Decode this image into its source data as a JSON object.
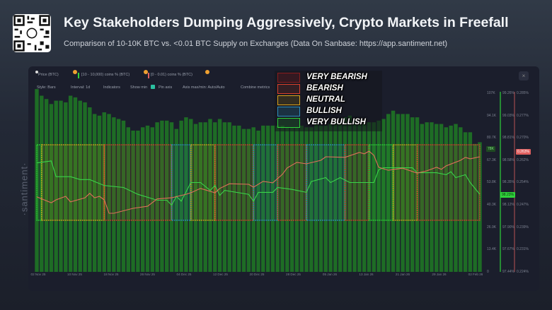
{
  "header": {
    "title": "Key Stakeholders Dumping Aggressively, Crypto Markets in Freefall",
    "subtitle": "Comparison of 10-10K BTC vs. <0.01 BTC Supply on Exchanges (Data On Sanbase: https://app.santiment.net)",
    "qr_icon": "qr-code-icon"
  },
  "toolbar": {
    "metrics": [
      "Price (BTC)",
      "[10 - 10,000) coins % (BTC)",
      "[0 - 0.01) coins % (BTC)"
    ],
    "controls": [
      "Style: Bars",
      "Interval: 1d",
      "Indicators",
      "Show min",
      "Pin axis",
      "Axis max/min: Auto/Auto",
      "Combine metrics"
    ],
    "close_label": "×"
  },
  "watermark": "·santiment·",
  "legend": [
    {
      "label": "VERY BEARISH",
      "color": "#8a1c1c"
    },
    {
      "label": "BEARISH",
      "color": "#d9402c"
    },
    {
      "label": "NEUTRAL",
      "color": "#d9a21b"
    },
    {
      "label": "BULLISH",
      "color": "#2f8fbf"
    },
    {
      "label": "VERY BULLISH",
      "color": "#2fd23a"
    }
  ],
  "chart_data": {
    "type": "bar",
    "x_tick_labels": [
      "02 Nov 25",
      "10 Nov 25",
      "18 Nov 25",
      "26 Nov 25",
      "04 Dec 25",
      "12 Dec 25",
      "20 Dec 25",
      "28 Dec 25",
      "05 Jan 26",
      "13 Jan 26",
      "21 Jan 26",
      "29 Jan 26",
      "02 Feb 26"
    ],
    "axes": {
      "price": {
        "ticks": [
          "107K",
          "94.1K",
          "80.7K",
          "67.3K",
          "53.8K",
          "40.3K",
          "26.9K",
          "13.4K",
          "0"
        ],
        "range_k": [
          0,
          107.5
        ],
        "color": "#8a8f9c",
        "current_tag": "78K"
      },
      "whales": {
        "ticks": [
          "99.26%",
          "99.03%",
          "98.81%",
          "98.58%",
          "98.35%",
          "98.12%",
          "97.90%",
          "97.67%",
          "97.44%"
        ],
        "range": [
          97.44,
          99.26
        ],
        "color": "#2fd23a",
        "current_tag": "98.23%"
      },
      "shrimps": {
        "ticks": [
          "0.285%",
          "0.277%",
          "0.270%",
          "0.262%",
          "0.254%",
          "0.247%",
          "0.239%",
          "0.231%",
          "0.224%"
        ],
        "range": [
          0.224,
          0.285
        ],
        "color": "#e06060",
        "current_tag": "0.263%"
      }
    },
    "price_series": {
      "name": "Price (BTC)",
      "unit": "K USD",
      "color": "#1f7a24",
      "start": "2025-11-02",
      "values": [
        110,
        106,
        104,
        101,
        103,
        103,
        102,
        106,
        105,
        103,
        102,
        99,
        95,
        94,
        96,
        95,
        93,
        92,
        91,
        87,
        85,
        85,
        87,
        88,
        87,
        90,
        91,
        91,
        90,
        86,
        91,
        93,
        92,
        89,
        90,
        90,
        92,
        90,
        92,
        90,
        90,
        88,
        88,
        86,
        86,
        87,
        85,
        88,
        88,
        88,
        88,
        88,
        87,
        87,
        87,
        88,
        87,
        87,
        89,
        88,
        88,
        89,
        90,
        91,
        93,
        94,
        92,
        91,
        91,
        90,
        90,
        91,
        92,
        95,
        97,
        95,
        95,
        95,
        93,
        93,
        89,
        90,
        90,
        89,
        89,
        87,
        88,
        89,
        87,
        84,
        84,
        77,
        78
      ]
    },
    "series": [
      {
        "name": "[10 - 10,000) coins % (BTC)",
        "axis": "whales",
        "color": "#3ad24a",
        "points": [
          [
            "2025-11-02",
            98.55
          ],
          [
            "2025-11-05",
            98.57
          ],
          [
            "2025-11-06",
            98.41
          ],
          [
            "2025-11-09",
            98.41
          ],
          [
            "2025-11-11",
            98.38
          ],
          [
            "2025-11-13",
            98.38
          ],
          [
            "2025-11-16",
            98.32
          ],
          [
            "2025-11-20",
            98.3
          ],
          [
            "2025-11-23",
            98.23
          ],
          [
            "2025-11-27",
            98.17
          ],
          [
            "2025-11-29",
            98.17
          ],
          [
            "2025-11-30",
            98.12
          ],
          [
            "2025-12-01",
            98.21
          ],
          [
            "2025-12-02",
            98.16
          ],
          [
            "2025-12-04",
            98.35
          ],
          [
            "2025-12-06",
            98.35
          ],
          [
            "2025-12-08",
            98.27
          ],
          [
            "2025-12-09",
            98.32
          ],
          [
            "2025-12-10",
            98.22
          ],
          [
            "2025-12-11",
            98.27
          ],
          [
            "2025-12-16",
            98.23
          ],
          [
            "2025-12-17",
            98.16
          ],
          [
            "2025-12-18",
            98.25
          ],
          [
            "2025-12-21",
            98.25
          ],
          [
            "2025-12-22",
            98.3
          ],
          [
            "2025-12-25",
            98.28
          ],
          [
            "2025-12-28",
            98.25
          ],
          [
            "2025-12-29",
            98.36
          ],
          [
            "2026-01-01",
            98.4
          ],
          [
            "2026-01-02",
            98.35
          ],
          [
            "2026-01-04",
            98.4
          ],
          [
            "2026-01-06",
            98.35
          ],
          [
            "2026-01-11",
            98.35
          ],
          [
            "2026-01-12",
            98.48
          ],
          [
            "2026-01-13",
            98.5
          ],
          [
            "2026-01-19",
            98.5
          ],
          [
            "2026-01-20",
            98.45
          ],
          [
            "2026-01-24",
            98.45
          ],
          [
            "2026-01-26",
            98.43
          ],
          [
            "2026-01-27",
            98.46
          ],
          [
            "2026-01-28",
            98.4
          ],
          [
            "2026-01-30",
            98.43
          ],
          [
            "2026-01-31",
            98.35
          ],
          [
            "2026-02-02",
            98.23
          ]
        ]
      },
      {
        "name": "[0 - 0.01) coins % (BTC)",
        "axis": "shrimps",
        "color": "#e0705a",
        "points": [
          [
            "2025-11-02",
            0.2496
          ],
          [
            "2025-11-05",
            0.2476
          ],
          [
            "2025-11-06",
            0.2486
          ],
          [
            "2025-11-08",
            0.2498
          ],
          [
            "2025-11-09",
            0.2479
          ],
          [
            "2025-11-12",
            0.2493
          ],
          [
            "2025-11-13",
            0.2508
          ],
          [
            "2025-11-14",
            0.2493
          ],
          [
            "2025-11-15",
            0.2498
          ],
          [
            "2025-11-16",
            0.2486
          ],
          [
            "2025-11-17",
            0.244
          ],
          [
            "2025-11-18",
            0.244
          ],
          [
            "2025-11-22",
            0.2457
          ],
          [
            "2025-11-25",
            0.2464
          ],
          [
            "2025-11-27",
            0.2489
          ],
          [
            "2025-11-30",
            0.2493
          ],
          [
            "2025-12-03",
            0.2505
          ],
          [
            "2025-12-04",
            0.251
          ],
          [
            "2025-12-06",
            0.2525
          ],
          [
            "2025-12-09",
            0.251
          ],
          [
            "2025-12-10",
            0.2525
          ],
          [
            "2025-12-12",
            0.2541
          ],
          [
            "2025-12-16",
            0.2539
          ],
          [
            "2025-12-17",
            0.2529
          ],
          [
            "2025-12-19",
            0.2549
          ],
          [
            "2025-12-21",
            0.2544
          ],
          [
            "2025-12-23",
            0.2573
          ],
          [
            "2025-12-24",
            0.2595
          ],
          [
            "2025-12-26",
            0.2614
          ],
          [
            "2025-12-28",
            0.2609
          ],
          [
            "2025-12-31",
            0.2621
          ],
          [
            "2026-01-01",
            0.2633
          ],
          [
            "2026-01-05",
            0.2631
          ],
          [
            "2026-01-08",
            0.2648
          ],
          [
            "2026-01-09",
            0.2643
          ],
          [
            "2026-01-10",
            0.2652
          ],
          [
            "2026-01-11",
            0.2638
          ],
          [
            "2026-01-12",
            0.2597
          ],
          [
            "2026-01-14",
            0.2587
          ],
          [
            "2026-01-17",
            0.2594
          ],
          [
            "2026-01-20",
            0.2577
          ],
          [
            "2026-01-22",
            0.2585
          ],
          [
            "2026-01-24",
            0.2597
          ],
          [
            "2026-01-25",
            0.259
          ],
          [
            "2026-01-26",
            0.2602
          ],
          [
            "2026-01-29",
            0.2621
          ],
          [
            "2026-01-30",
            0.2631
          ],
          [
            "2026-01-31",
            0.2626
          ],
          [
            "2026-02-02",
            0.2633
          ]
        ]
      }
    ],
    "sentiment_zones": [
      {
        "from": "2025-11-02",
        "to": "2025-11-03",
        "sentiment": "VERY BULLISH"
      },
      {
        "from": "2025-11-03",
        "to": "2025-11-16",
        "sentiment": "NEUTRAL"
      },
      {
        "from": "2025-11-16",
        "to": "2025-11-30",
        "sentiment": "BEARISH"
      },
      {
        "from": "2025-11-30",
        "to": "2025-12-04",
        "sentiment": "BULLISH"
      },
      {
        "from": "2025-12-04",
        "to": "2025-12-09",
        "sentiment": "NEUTRAL"
      },
      {
        "from": "2025-12-09",
        "to": "2025-12-17",
        "sentiment": "BEARISH"
      },
      {
        "from": "2025-12-17",
        "to": "2025-12-22",
        "sentiment": "BULLISH"
      },
      {
        "from": "2025-12-22",
        "to": "2025-12-28",
        "sentiment": "BEARISH"
      },
      {
        "from": "2025-12-28",
        "to": "2026-01-05",
        "sentiment": "BULLISH"
      },
      {
        "from": "2026-01-05",
        "to": "2026-01-10",
        "sentiment": "BEARISH"
      },
      {
        "from": "2026-01-10",
        "to": "2026-01-15",
        "sentiment": "VERY BULLISH"
      },
      {
        "from": "2026-01-15",
        "to": "2026-01-20",
        "sentiment": "NEUTRAL"
      },
      {
        "from": "2026-01-20",
        "to": "2026-02-02",
        "sentiment": "BEARISH"
      }
    ],
    "grid": false,
    "legend_position": "top-center"
  }
}
